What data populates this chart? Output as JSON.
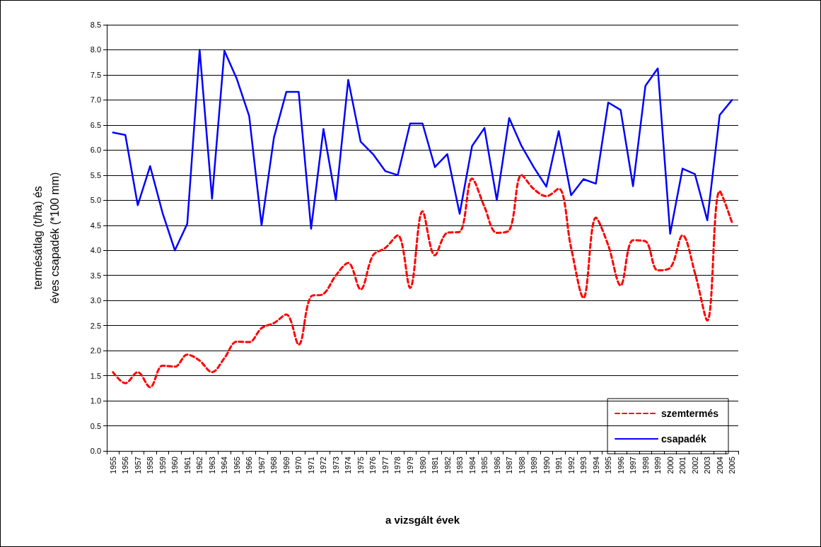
{
  "chart_data": {
    "type": "line",
    "xlabel": "a vizsgált évek",
    "ylabel": "termésátlag (t/ha) és\néves csapadék (*100 mm)",
    "categories": [
      "1955",
      "1956",
      "1957",
      "1958",
      "1959",
      "1960",
      "1961",
      "1962",
      "1963",
      "1964",
      "1965",
      "1966",
      "1967",
      "1968",
      "1969",
      "1970",
      "1971",
      "1972",
      "1973",
      "1974",
      "1975",
      "1976",
      "1977",
      "1978",
      "1979",
      "1980",
      "1981",
      "1982",
      "1983",
      "1984",
      "1985",
      "1986",
      "1987",
      "1988",
      "1989",
      "1990",
      "1991",
      "1992",
      "1993",
      "1994",
      "1995",
      "1996",
      "1997",
      "1998",
      "1999",
      "2000",
      "2001",
      "2002",
      "2003",
      "2004",
      "2005"
    ],
    "series": [
      {
        "name": "szemtermés",
        "color": "#ff0000",
        "line_style": "dashed",
        "values": [
          1.57,
          1.35,
          1.57,
          1.27,
          1.7,
          1.68,
          1.92,
          1.8,
          1.57,
          1.85,
          2.18,
          2.17,
          2.45,
          2.55,
          2.72,
          2.12,
          3.08,
          3.13,
          3.5,
          3.75,
          3.22,
          3.9,
          4.05,
          4.3,
          3.25,
          4.78,
          3.9,
          4.35,
          4.37,
          5.43,
          4.87,
          4.35,
          4.4,
          5.5,
          5.22,
          5.08,
          5.23,
          4.05,
          3.05,
          4.65,
          4.1,
          3.3,
          4.2,
          4.18,
          3.6,
          3.65,
          4.3,
          3.55,
          2.6,
          5.18,
          4.55
        ]
      },
      {
        "name": "csapadék",
        "color": "#0000ff",
        "line_style": "solid",
        "values": [
          6.35,
          6.3,
          4.9,
          5.68,
          4.75,
          4.0,
          4.53,
          8.0,
          5.03,
          7.98,
          7.42,
          6.68,
          4.5,
          6.25,
          7.16,
          7.16,
          4.43,
          6.42,
          5.0,
          7.4,
          6.17,
          5.92,
          5.58,
          5.5,
          6.53,
          6.53,
          5.66,
          5.92,
          4.73,
          6.08,
          6.44,
          5.0,
          6.64,
          6.08,
          5.65,
          5.27,
          6.38,
          5.1,
          5.42,
          5.33,
          6.95,
          6.8,
          5.28,
          7.28,
          7.63,
          4.33,
          5.63,
          5.52,
          4.6,
          6.7,
          7.0
        ]
      }
    ],
    "ylim": [
      0,
      8.5
    ],
    "yticks": [
      {
        "value": 0,
        "label": "0.0"
      },
      {
        "value": 0.5,
        "label": "0.5"
      },
      {
        "value": 1,
        "label": "1.0"
      },
      {
        "value": 1.5,
        "label": "1.5"
      },
      {
        "value": 2,
        "label": "2.0"
      },
      {
        "value": 2.5,
        "label": "2.5"
      },
      {
        "value": 3,
        "label": "3.0"
      },
      {
        "value": 3.5,
        "label": "3.5"
      },
      {
        "value": 4,
        "label": "4.0"
      },
      {
        "value": 4.5,
        "label": "4.5"
      },
      {
        "value": 5,
        "label": "5.0"
      },
      {
        "value": 5.5,
        "label": "5.5"
      },
      {
        "value": 6,
        "label": "6.0"
      },
      {
        "value": 6.5,
        "label": "6.5"
      },
      {
        "value": 7,
        "label": "7.0"
      },
      {
        "value": 7.5,
        "label": "7.5"
      },
      {
        "value": 8,
        "label": "8.0"
      },
      {
        "value": 8.5,
        "label": "8.5"
      }
    ],
    "grid": "y",
    "legend": "bottom right",
    "marker": "none"
  }
}
